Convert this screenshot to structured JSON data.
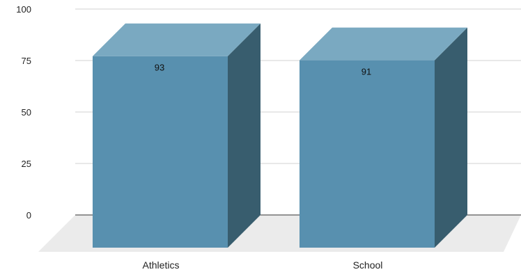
{
  "chart_data": {
    "type": "bar",
    "style": "3d",
    "categories": [
      "Athletics",
      "School"
    ],
    "values": [
      93,
      91
    ],
    "data_labels": [
      "93",
      "91"
    ],
    "ylim": [
      0,
      100
    ],
    "yticks": [
      0,
      25,
      50,
      75,
      100
    ],
    "ytick_labels": [
      "0",
      "25",
      "50",
      "75",
      "100"
    ],
    "grid": true,
    "legend": "none",
    "title": "",
    "xlabel": "",
    "ylabel": "",
    "colors": {
      "bar_front": "#5890AF",
      "bar_top": "#7AA9C1",
      "bar_side": "#385D6E",
      "floor": "#EBEBEB",
      "grid": "#D0D0D0",
      "baseline": "#333333"
    }
  }
}
